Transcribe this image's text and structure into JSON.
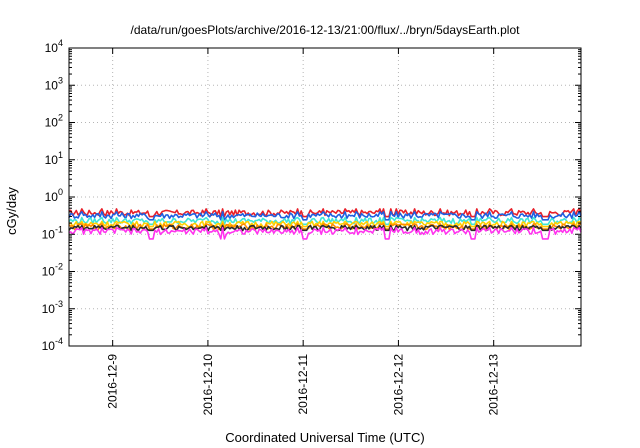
{
  "chart_data": {
    "type": "line",
    "title": "/data/run/goesPlots/archive/2016-12-13/21:00/flux/../bryn/5daysEarth.plot",
    "xlabel": "Coordinated Universal Time (UTC)",
    "ylabel": "cGy/day",
    "y_scale": "log",
    "ylim": [
      0.0001,
      10000
    ],
    "y_ticks": [
      {
        "base": "10",
        "exp": "-4",
        "value": 0.0001
      },
      {
        "base": "10",
        "exp": "-3",
        "value": 0.001
      },
      {
        "base": "10",
        "exp": "-2",
        "value": 0.01
      },
      {
        "base": "10",
        "exp": "-1",
        "value": 0.1
      },
      {
        "base": "10",
        "exp": "0",
        "value": 1
      },
      {
        "base": "10",
        "exp": "1",
        "value": 10
      },
      {
        "base": "10",
        "exp": "2",
        "value": 100
      },
      {
        "base": "10",
        "exp": "3",
        "value": 1000
      },
      {
        "base": "10",
        "exp": "4",
        "value": 10000
      }
    ],
    "xlim": [
      "2016-12-08 13:00",
      "2016-12-13 22:00"
    ],
    "x_ticks": [
      "2016-12-9",
      "2016-12-10",
      "2016-12-11",
      "2016-12-12",
      "2016-12-13"
    ],
    "x_tick_dates": [
      "2016-12-09",
      "2016-12-10",
      "2016-12-11",
      "2016-12-12",
      "2016-12-13"
    ],
    "grid": true,
    "series": [
      {
        "color": "#e8202a",
        "level": 0.38,
        "min": 0.27,
        "max": 0.48
      },
      {
        "color": "#1f5fe0",
        "level": 0.32,
        "min": 0.22,
        "max": 0.4
      },
      {
        "color": "#3fe7d8",
        "level": 0.23,
        "min": 0.17,
        "max": 0.28
      },
      {
        "color": "#ffd000",
        "level": 0.19,
        "min": 0.15,
        "max": 0.22
      },
      {
        "color": "#ff8c00",
        "level": 0.16,
        "min": 0.13,
        "max": 0.19
      },
      {
        "color": "#2a2a2a",
        "level": 0.15,
        "min": 0.12,
        "max": 0.17
      },
      {
        "color": "#ff33ee",
        "level": 0.12,
        "min": 0.06,
        "max": 0.15
      }
    ]
  }
}
